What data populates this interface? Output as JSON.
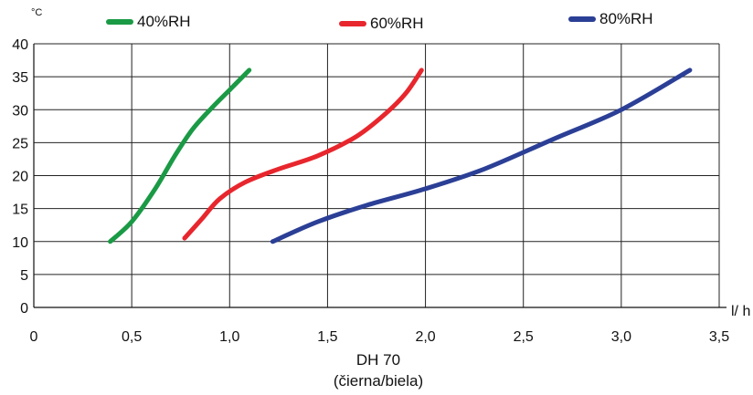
{
  "chart_data": {
    "type": "line",
    "y_unit": "°C",
    "x_unit": "l/ h",
    "xlim": [
      0,
      3.5
    ],
    "ylim": [
      0,
      40
    ],
    "x_ticks": [
      "0",
      "0,5",
      "1,0",
      "1,5",
      "2,0",
      "2,5",
      "3,0",
      "3,5"
    ],
    "y_ticks": [
      "0",
      "5",
      "10",
      "15",
      "20",
      "25",
      "30",
      "35",
      "40"
    ],
    "grid": true,
    "legend_position": "top",
    "caption_line1": "DH 70",
    "caption_line2": "(čierna/biela)",
    "series": [
      {
        "name": "40%RH",
        "color": "#1a9a45",
        "x": [
          0.39,
          0.5,
          0.62,
          0.72,
          0.81,
          0.9,
          1.0,
          1.1
        ],
        "y": [
          10,
          13,
          18,
          23,
          27,
          30,
          33,
          36
        ]
      },
      {
        "name": "60%RH",
        "color": "#e8262d",
        "x": [
          0.77,
          0.86,
          0.95,
          1.08,
          1.25,
          1.45,
          1.65,
          1.8,
          1.9,
          1.98
        ],
        "y": [
          10.5,
          13.5,
          16.5,
          19,
          21,
          23,
          26,
          29.5,
          32.5,
          36
        ]
      },
      {
        "name": "80%RH",
        "color": "#2b3f96",
        "x": [
          1.22,
          1.45,
          1.7,
          2.0,
          2.3,
          2.65,
          3.0,
          3.35
        ],
        "y": [
          10,
          13,
          15.5,
          18,
          21,
          25.5,
          30,
          36
        ]
      }
    ]
  }
}
